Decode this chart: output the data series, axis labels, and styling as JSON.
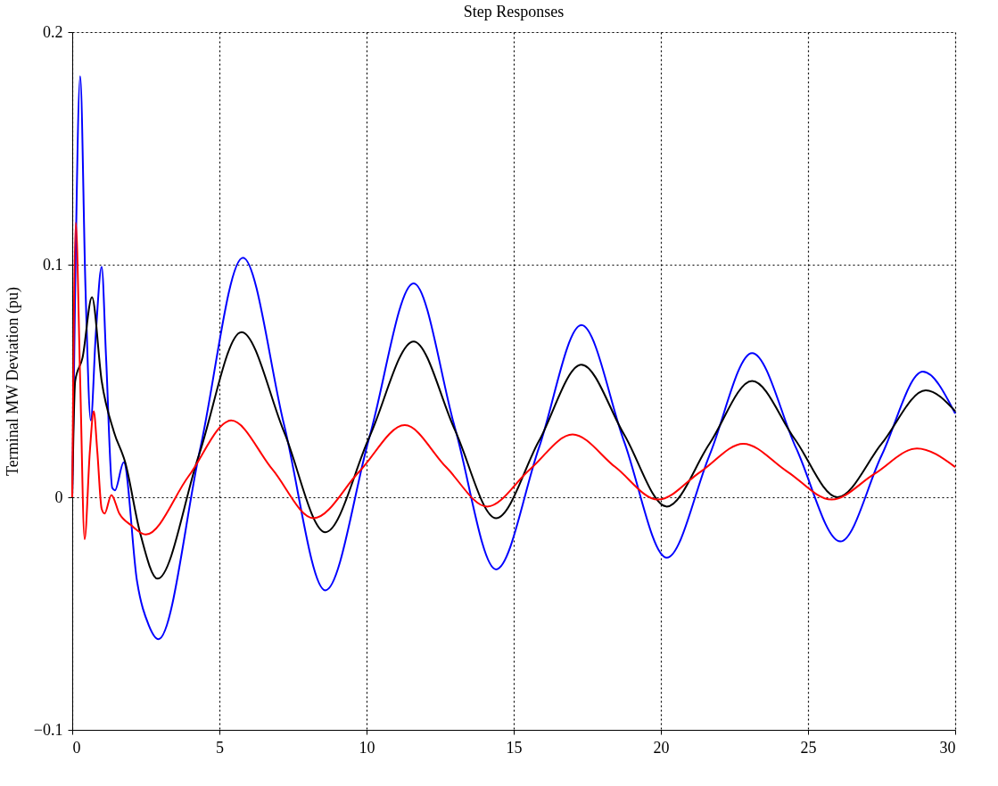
{
  "chart_data": {
    "type": "line",
    "title": "Step Responses",
    "ylabel": "Terminal MW Deviation (pu)",
    "xlim": [
      0,
      30
    ],
    "xticks": [
      0,
      5,
      10,
      15,
      20,
      25,
      30
    ],
    "ylim": [
      -0.1,
      0.2
    ],
    "yticks": [
      -0.1,
      0,
      0.1,
      0.2
    ],
    "grid": true,
    "marker": "none",
    "line_style": "solid",
    "series": [
      {
        "color": "#0000ff",
        "x": [
          0,
          0.1,
          0.27,
          0.45,
          0.63,
          0.8,
          1.0,
          1.15,
          1.36,
          1.45,
          1.75,
          2.2,
          2.6,
          2.93,
          4.35,
          5.8,
          7.2,
          8.6,
          10.1,
          11.6,
          13.0,
          14.4,
          15.85,
          17.3,
          18.75,
          20.2,
          21.65,
          23.1,
          24.6,
          26.1,
          27.5,
          28.9,
          30
        ],
        "values": [
          0,
          0.09,
          0.181,
          0.09,
          0.033,
          0.07,
          0.099,
          0.06,
          0.004,
          0.003,
          0.015,
          -0.036,
          -0.055,
          -0.061,
          0.021,
          0.103,
          0.031,
          -0.04,
          0.026,
          0.092,
          0.03,
          -0.031,
          0.021,
          0.074,
          0.024,
          -0.026,
          0.018,
          0.062,
          0.021,
          -0.019,
          0.018,
          0.054,
          0.036
        ]
      },
      {
        "color": "#000000",
        "x": [
          0,
          0.1,
          0.35,
          0.67,
          1.0,
          1.42,
          1.8,
          2.3,
          2.9,
          4.3,
          5.75,
          7.2,
          8.6,
          10.1,
          11.6,
          13.0,
          14.4,
          15.85,
          17.3,
          18.75,
          20.2,
          21.65,
          23.1,
          24.55,
          26.0,
          27.5,
          29.0,
          30
        ],
        "values": [
          0,
          0.05,
          0.06,
          0.086,
          0.05,
          0.028,
          0.015,
          -0.015,
          -0.035,
          0.018,
          0.071,
          0.028,
          -0.015,
          0.026,
          0.067,
          0.029,
          -0.009,
          0.024,
          0.057,
          0.027,
          -0.004,
          0.023,
          0.05,
          0.025,
          0.0,
          0.023,
          0.046,
          0.037
        ]
      },
      {
        "color": "#ff0000",
        "x": [
          0,
          0.12,
          0.27,
          0.42,
          0.6,
          0.73,
          0.85,
          1.0,
          1.1,
          1.33,
          1.6,
          2.0,
          2.5,
          3.95,
          5.4,
          6.8,
          8.2,
          9.75,
          11.3,
          12.7,
          14.1,
          15.55,
          17.0,
          18.45,
          19.9,
          21.35,
          22.8,
          24.3,
          25.8,
          27.25,
          28.7,
          30
        ],
        "values": [
          0,
          0.118,
          0.05,
          -0.018,
          0.02,
          0.037,
          0.02,
          -0.005,
          -0.007,
          0.001,
          -0.007,
          -0.012,
          -0.016,
          0.009,
          0.033,
          0.012,
          -0.009,
          0.011,
          0.031,
          0.013,
          -0.004,
          0.012,
          0.027,
          0.013,
          -0.001,
          0.011,
          0.023,
          0.011,
          -0.001,
          0.01,
          0.021,
          0.013
        ]
      }
    ]
  }
}
